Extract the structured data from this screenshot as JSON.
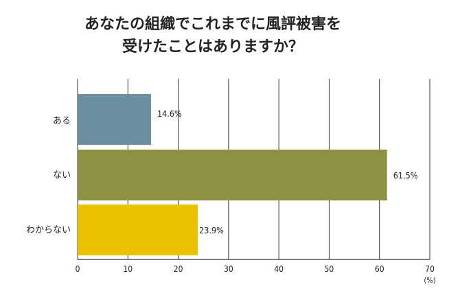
{
  "chart_data": {
    "type": "bar",
    "orientation": "horizontal",
    "title": [
      "あなたの組織でこれまでに風評被害を",
      "受けたことはありますか？"
    ],
    "categories": [
      "ある",
      "ない",
      "わからない"
    ],
    "values": [
      14.6,
      61.5,
      23.9
    ],
    "value_labels": [
      "14.6%",
      "61.5%",
      "23.9%"
    ],
    "colors": [
      "#6b8fa0",
      "#8e9142",
      "#ecc100"
    ],
    "xlabel": "(%)",
    "ylabel": "",
    "xlim": [
      0,
      70
    ],
    "xticks": [
      0,
      10,
      20,
      30,
      40,
      50,
      60,
      70
    ],
    "grid": "vertical"
  }
}
